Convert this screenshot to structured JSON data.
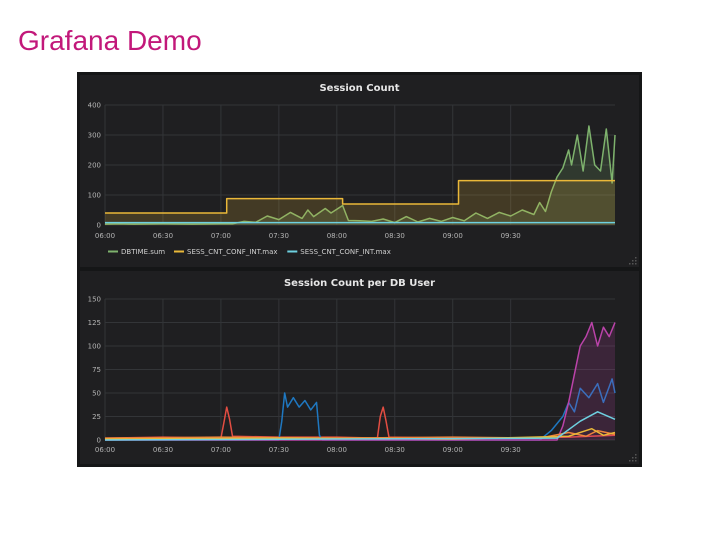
{
  "slide": {
    "title": "Grafana Demo"
  },
  "colors": {
    "title": "#c2187a",
    "background": "#151617",
    "panel": "#1f1f21",
    "green": "#7eb26d",
    "yellow": "#eab839",
    "cyan": "#6ed0e0",
    "red": "#e24d42",
    "blue": "#1f78c1",
    "purple": "#ba43a9",
    "orange": "#ef843c"
  },
  "chart_data": [
    {
      "type": "line",
      "title": "Session Count",
      "ylim": [
        0,
        400
      ],
      "yticks": [
        "0",
        "100",
        "200",
        "300",
        "400"
      ],
      "xticks": [
        "06:00",
        "06:30",
        "07:00",
        "07:30",
        "08:00",
        "08:30",
        "09:00",
        "09:30"
      ],
      "legend_position": "bottom-left",
      "grid": true,
      "series": [
        {
          "name": "DBTIME.sum",
          "color": "#7eb26d",
          "fill": true,
          "points": [
            [
              0,
              3
            ],
            [
              0.25,
              4
            ],
            [
              0.5,
              3
            ],
            [
              1,
              4
            ],
            [
              1.5,
              3
            ],
            [
              2,
              4
            ],
            [
              2.2,
              4
            ],
            [
              2.4,
              12
            ],
            [
              2.6,
              9
            ],
            [
              2.8,
              30
            ],
            [
              3,
              18
            ],
            [
              3.2,
              42
            ],
            [
              3.4,
              22
            ],
            [
              3.5,
              50
            ],
            [
              3.6,
              28
            ],
            [
              3.8,
              55
            ],
            [
              3.9,
              40
            ],
            [
              4.1,
              65
            ],
            [
              4.2,
              15
            ],
            [
              4.4,
              14
            ],
            [
              4.6,
              12
            ],
            [
              4.8,
              20
            ],
            [
              5,
              8
            ],
            [
              5.2,
              28
            ],
            [
              5.4,
              10
            ],
            [
              5.6,
              22
            ],
            [
              5.8,
              12
            ],
            [
              6,
              25
            ],
            [
              6.2,
              14
            ],
            [
              6.4,
              40
            ],
            [
              6.6,
              22
            ],
            [
              6.8,
              42
            ],
            [
              7,
              30
            ],
            [
              7.2,
              50
            ],
            [
              7.4,
              35
            ],
            [
              7.5,
              75
            ],
            [
              7.6,
              45
            ],
            [
              7.7,
              110
            ],
            [
              7.8,
              160
            ],
            [
              7.9,
              190
            ],
            [
              8,
              250
            ],
            [
              8.05,
              200
            ],
            [
              8.15,
              300
            ],
            [
              8.25,
              180
            ],
            [
              8.35,
              330
            ],
            [
              8.45,
              200
            ],
            [
              8.55,
              180
            ],
            [
              8.65,
              320
            ],
            [
              8.75,
              140
            ],
            [
              8.8,
              300
            ]
          ]
        },
        {
          "name": "SESS_CNT_CONF_INT.max",
          "color": "#eab839",
          "fill": true,
          "points": [
            [
              0,
              40
            ],
            [
              2.1,
              40
            ],
            [
              2.1,
              88
            ],
            [
              4.1,
              88
            ],
            [
              4.1,
              70
            ],
            [
              6.1,
              70
            ],
            [
              6.1,
              148
            ],
            [
              8.8,
              148
            ]
          ]
        },
        {
          "name": "SESS_CNT_CONF_INT.max",
          "color": "#6ed0e0",
          "fill": false,
          "points": [
            [
              0,
              8
            ],
            [
              8.8,
              8
            ]
          ]
        }
      ]
    },
    {
      "type": "line",
      "title": "Session Count per DB User",
      "ylim": [
        0,
        150
      ],
      "yticks": [
        "0",
        "25",
        "50",
        "75",
        "100",
        "125",
        "150"
      ],
      "xticks": [
        "06:00",
        "06:30",
        "07:00",
        "07:30",
        "08:00",
        "08:30",
        "09:00",
        "09:30"
      ],
      "grid": true,
      "series": [
        {
          "color": "#e24d42",
          "fill": false,
          "points": [
            [
              0,
              2
            ],
            [
              1,
              3
            ],
            [
              2,
              2
            ],
            [
              2.05,
              18
            ],
            [
              2.1,
              35
            ],
            [
              2.15,
              22
            ],
            [
              2.2,
              4
            ],
            [
              3,
              3
            ],
            [
              4,
              3
            ],
            [
              4.7,
              2
            ],
            [
              4.75,
              25
            ],
            [
              4.8,
              35
            ],
            [
              4.85,
              20
            ],
            [
              4.9,
              3
            ],
            [
              6,
              2
            ],
            [
              7,
              2
            ],
            [
              8,
              3
            ],
            [
              8.8,
              5
            ]
          ]
        },
        {
          "color": "#1f78c1",
          "fill": false,
          "points": [
            [
              0,
              0
            ],
            [
              3,
              0
            ],
            [
              3.05,
              20
            ],
            [
              3.1,
              50
            ],
            [
              3.15,
              35
            ],
            [
              3.25,
              45
            ],
            [
              3.35,
              35
            ],
            [
              3.45,
              42
            ],
            [
              3.55,
              32
            ],
            [
              3.65,
              40
            ],
            [
              3.7,
              5
            ],
            [
              3.75,
              0
            ],
            [
              7.5,
              0
            ],
            [
              7.7,
              10
            ],
            [
              7.9,
              25
            ],
            [
              8.0,
              40
            ],
            [
              8.1,
              30
            ],
            [
              8.2,
              55
            ],
            [
              8.35,
              45
            ],
            [
              8.5,
              60
            ],
            [
              8.6,
              40
            ],
            [
              8.75,
              65
            ],
            [
              8.8,
              50
            ]
          ]
        },
        {
          "color": "#ba43a9",
          "fill": true,
          "points": [
            [
              0,
              0
            ],
            [
              7.8,
              0
            ],
            [
              7.9,
              15
            ],
            [
              8.0,
              40
            ],
            [
              8.1,
              70
            ],
            [
              8.2,
              100
            ],
            [
              8.3,
              110
            ],
            [
              8.4,
              125
            ],
            [
              8.5,
              100
            ],
            [
              8.6,
              120
            ],
            [
              8.7,
              110
            ],
            [
              8.8,
              125
            ]
          ]
        },
        {
          "color": "#ef843c",
          "fill": false,
          "points": [
            [
              0,
              2
            ],
            [
              2,
              3
            ],
            [
              4,
              2
            ],
            [
              6,
              3
            ],
            [
              7.5,
              2
            ],
            [
              8,
              8
            ],
            [
              8.3,
              4
            ],
            [
              8.5,
              10
            ],
            [
              8.8,
              6
            ]
          ]
        },
        {
          "color": "#eab839",
          "fill": false,
          "points": [
            [
              0,
              1
            ],
            [
              3,
              2
            ],
            [
              6,
              1
            ],
            [
              8,
              4
            ],
            [
              8.4,
              12
            ],
            [
              8.6,
              5
            ],
            [
              8.8,
              8
            ]
          ]
        },
        {
          "color": "#6ed0e0",
          "fill": false,
          "points": [
            [
              0,
              0
            ],
            [
              4,
              1
            ],
            [
              7.8,
              2
            ],
            [
              8.2,
              20
            ],
            [
              8.5,
              30
            ],
            [
              8.8,
              22
            ]
          ]
        }
      ]
    }
  ]
}
